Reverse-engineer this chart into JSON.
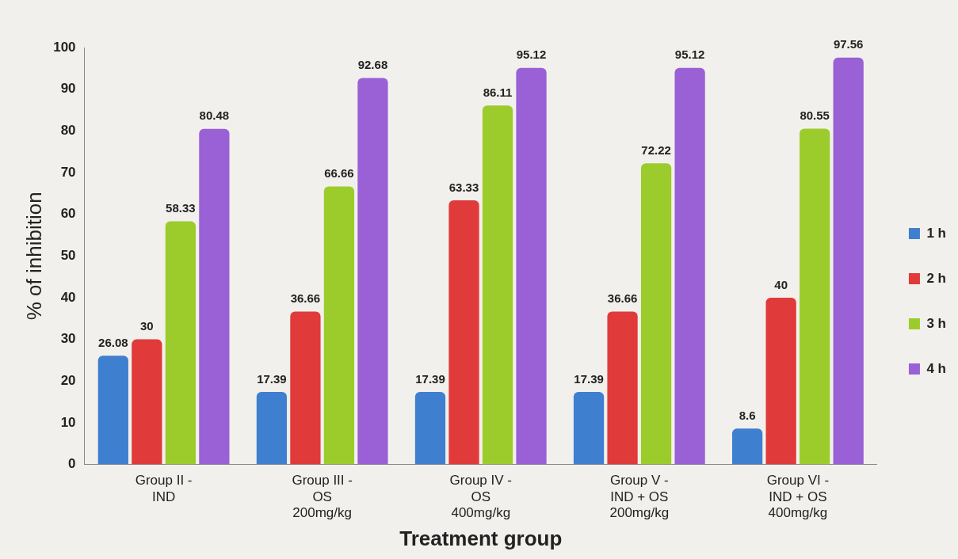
{
  "chart_data": {
    "type": "bar",
    "xlabel": "Treatment group",
    "ylabel": "% of inhibition",
    "categories": [
      "Group II -\nIND",
      "Group III -\nOS\n200mg/kg",
      "Group IV -\nOS\n400mg/kg",
      "Group V -\nIND + OS\n200mg/kg",
      "Group VI -\nIND + OS\n400mg/kg"
    ],
    "series": [
      {
        "name": "1 h",
        "color": "#3f7fd0",
        "values": [
          26.08,
          17.39,
          17.39,
          17.39,
          8.6
        ]
      },
      {
        "name": "2 h",
        "color": "#e03a3a",
        "values": [
          30,
          36.66,
          63.33,
          36.66,
          40
        ]
      },
      {
        "name": "3 h",
        "color": "#9ccc2c",
        "values": [
          58.33,
          66.66,
          86.11,
          72.22,
          80.55
        ]
      },
      {
        "name": "4 h",
        "color": "#9a60d6",
        "values": [
          80.48,
          92.68,
          95.12,
          95.12,
          97.56
        ]
      }
    ],
    "ylim": [
      0,
      100
    ],
    "yticks": [
      0,
      10,
      20,
      30,
      40,
      50,
      60,
      70,
      80,
      90,
      100
    ],
    "grid": false,
    "legend": "right",
    "data_labels": true
  }
}
